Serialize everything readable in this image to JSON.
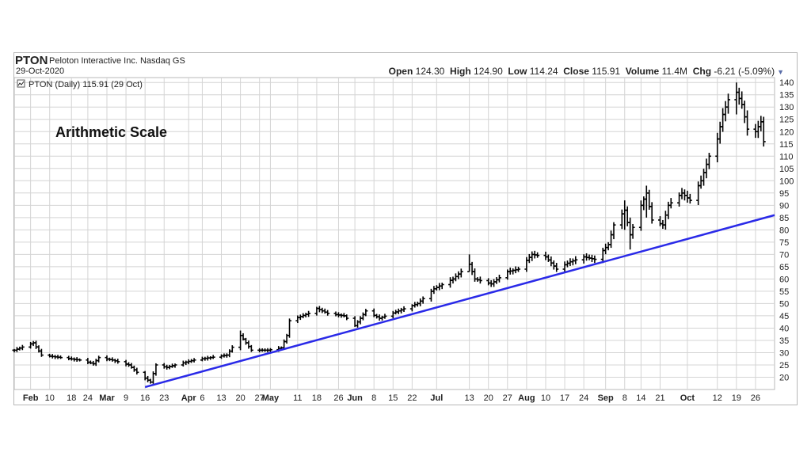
{
  "header": {
    "symbol": "PTON",
    "company": "Peloton Interactive Inc. Nasdaq GS",
    "date": "29-Oct-2020",
    "open_label": "Open",
    "open": "124.30",
    "high_label": "High",
    "high": "124.90",
    "low_label": "Low",
    "low": "114.24",
    "close_label": "Close",
    "close": "115.91",
    "volume_label": "Volume",
    "volume": "11.4M",
    "chg_label": "Chg",
    "chg": "-6.21 (-5.09%)"
  },
  "colors": {
    "bars": "#000000",
    "trendline": "#2a2ae8",
    "grid": "#d4d4d4",
    "frame": "#b8b8b8"
  },
  "chart_data": {
    "type": "ohlc",
    "legend": "PTON (Daily) 115.91 (29 Oct)",
    "annotation": "Arithmetic Scale",
    "y_ticks": [
      20,
      25,
      30,
      35,
      40,
      45,
      50,
      55,
      60,
      65,
      70,
      75,
      80,
      85,
      90,
      95,
      100,
      105,
      110,
      115,
      120,
      125,
      130,
      135,
      140
    ],
    "ylim": [
      15,
      142
    ],
    "x_ticks": [
      {
        "label": "Feb",
        "bold": true,
        "date": "2020-02-03"
      },
      {
        "label": "10",
        "date": "2020-02-10"
      },
      {
        "label": "18",
        "date": "2020-02-18"
      },
      {
        "label": "24",
        "date": "2020-02-24"
      },
      {
        "label": "Mar",
        "bold": true,
        "date": "2020-03-02"
      },
      {
        "label": "9",
        "date": "2020-03-09"
      },
      {
        "label": "16",
        "date": "2020-03-16"
      },
      {
        "label": "23",
        "date": "2020-03-23"
      },
      {
        "label": "Apr",
        "bold": true,
        "date": "2020-04-01"
      },
      {
        "label": "6",
        "date": "2020-04-06"
      },
      {
        "label": "13",
        "date": "2020-04-13"
      },
      {
        "label": "20",
        "date": "2020-04-20"
      },
      {
        "label": "27",
        "date": "2020-04-27"
      },
      {
        "label": "May",
        "bold": true,
        "date": "2020-05-01"
      },
      {
        "label": "11",
        "date": "2020-05-11"
      },
      {
        "label": "18",
        "date": "2020-05-18"
      },
      {
        "label": "26",
        "date": "2020-05-26"
      },
      {
        "label": "Jun",
        "bold": true,
        "date": "2020-06-01"
      },
      {
        "label": "8",
        "date": "2020-06-08"
      },
      {
        "label": "15",
        "date": "2020-06-15"
      },
      {
        "label": "22",
        "date": "2020-06-22"
      },
      {
        "label": "Jul",
        "bold": true,
        "date": "2020-07-01"
      },
      {
        "label": "13",
        "date": "2020-07-13"
      },
      {
        "label": "20",
        "date": "2020-07-20"
      },
      {
        "label": "27",
        "date": "2020-07-27"
      },
      {
        "label": "Aug",
        "bold": true,
        "date": "2020-08-03"
      },
      {
        "label": "10",
        "date": "2020-08-10"
      },
      {
        "label": "17",
        "date": "2020-08-17"
      },
      {
        "label": "24",
        "date": "2020-08-24"
      },
      {
        "label": "Sep",
        "bold": true,
        "date": "2020-09-01"
      },
      {
        "label": "8",
        "date": "2020-09-08"
      },
      {
        "label": "14",
        "date": "2020-09-14"
      },
      {
        "label": "21",
        "date": "2020-09-21"
      },
      {
        "label": "Oct",
        "bold": true,
        "date": "2020-10-01"
      },
      {
        "label": "12",
        "date": "2020-10-12"
      },
      {
        "label": "19",
        "date": "2020-10-19"
      },
      {
        "label": "26",
        "date": "2020-10-26"
      }
    ],
    "xlim": [
      "2020-01-28",
      "2020-11-02"
    ],
    "price_path": [
      [
        "2020-01-28",
        31
      ],
      [
        "2020-02-04",
        34
      ],
      [
        "2020-02-07",
        29
      ],
      [
        "2020-02-14",
        28
      ],
      [
        "2020-02-21",
        27
      ],
      [
        "2020-02-26",
        25.5
      ],
      [
        "2020-02-28",
        28
      ],
      [
        "2020-03-04",
        27
      ],
      [
        "2020-03-10",
        25
      ],
      [
        "2020-03-13",
        22
      ],
      [
        "2020-03-18",
        18
      ],
      [
        "2020-03-20",
        25
      ],
      [
        "2020-03-24",
        24
      ],
      [
        "2020-03-27",
        25
      ],
      [
        "2020-04-03",
        27
      ],
      [
        "2020-04-09",
        28
      ],
      [
        "2020-04-15",
        29
      ],
      [
        "2020-04-20",
        37
      ],
      [
        "2020-04-24",
        31
      ],
      [
        "2020-04-30",
        31
      ],
      [
        "2020-05-05",
        32
      ],
      [
        "2020-05-07",
        37
      ],
      [
        "2020-05-08",
        43
      ],
      [
        "2020-05-15",
        46
      ],
      [
        "2020-05-18",
        48
      ],
      [
        "2020-05-22",
        46
      ],
      [
        "2020-05-28",
        45
      ],
      [
        "2020-06-01",
        41
      ],
      [
        "2020-06-05",
        47
      ],
      [
        "2020-06-10",
        44
      ],
      [
        "2020-06-17",
        47
      ],
      [
        "2020-06-24",
        50
      ],
      [
        "2020-06-30",
        56
      ],
      [
        "2020-07-07",
        60
      ],
      [
        "2020-07-13",
        66
      ],
      [
        "2020-07-15",
        60
      ],
      [
        "2020-07-21",
        58
      ],
      [
        "2020-07-27",
        63
      ],
      [
        "2020-07-31",
        64
      ],
      [
        "2020-08-05",
        70
      ],
      [
        "2020-08-10",
        69
      ],
      [
        "2020-08-14",
        64
      ],
      [
        "2020-08-19",
        67
      ],
      [
        "2020-08-24",
        69
      ],
      [
        "2020-08-28",
        68
      ],
      [
        "2020-09-02",
        74
      ],
      [
        "2020-09-04",
        82
      ],
      [
        "2020-09-08",
        88
      ],
      [
        "2020-09-10",
        78
      ],
      [
        "2020-09-14",
        90
      ],
      [
        "2020-09-16",
        95
      ],
      [
        "2020-09-18",
        84
      ],
      [
        "2020-09-22",
        82
      ],
      [
        "2020-09-24",
        90
      ],
      [
        "2020-09-29",
        95
      ],
      [
        "2020-10-02",
        92
      ],
      [
        "2020-10-06",
        100
      ],
      [
        "2020-10-09",
        110
      ],
      [
        "2020-10-12",
        117
      ],
      [
        "2020-10-14",
        127
      ],
      [
        "2020-10-16",
        133
      ],
      [
        "2020-10-19",
        136
      ],
      [
        "2020-10-21",
        131
      ],
      [
        "2020-10-23",
        121
      ],
      [
        "2020-10-26",
        120
      ],
      [
        "2020-10-28",
        124
      ],
      [
        "2020-10-29",
        115.91
      ]
    ],
    "spikes": [
      [
        "2020-04-20",
        39,
        31
      ],
      [
        "2020-07-13",
        70,
        63
      ],
      [
        "2020-09-08",
        92,
        80
      ],
      [
        "2020-09-10",
        85,
        72
      ],
      [
        "2020-09-16",
        98,
        85
      ],
      [
        "2020-10-19",
        140,
        127
      ]
    ],
    "trendline": [
      [
        "2020-03-16",
        16
      ],
      [
        "2020-11-02",
        86
      ]
    ]
  }
}
